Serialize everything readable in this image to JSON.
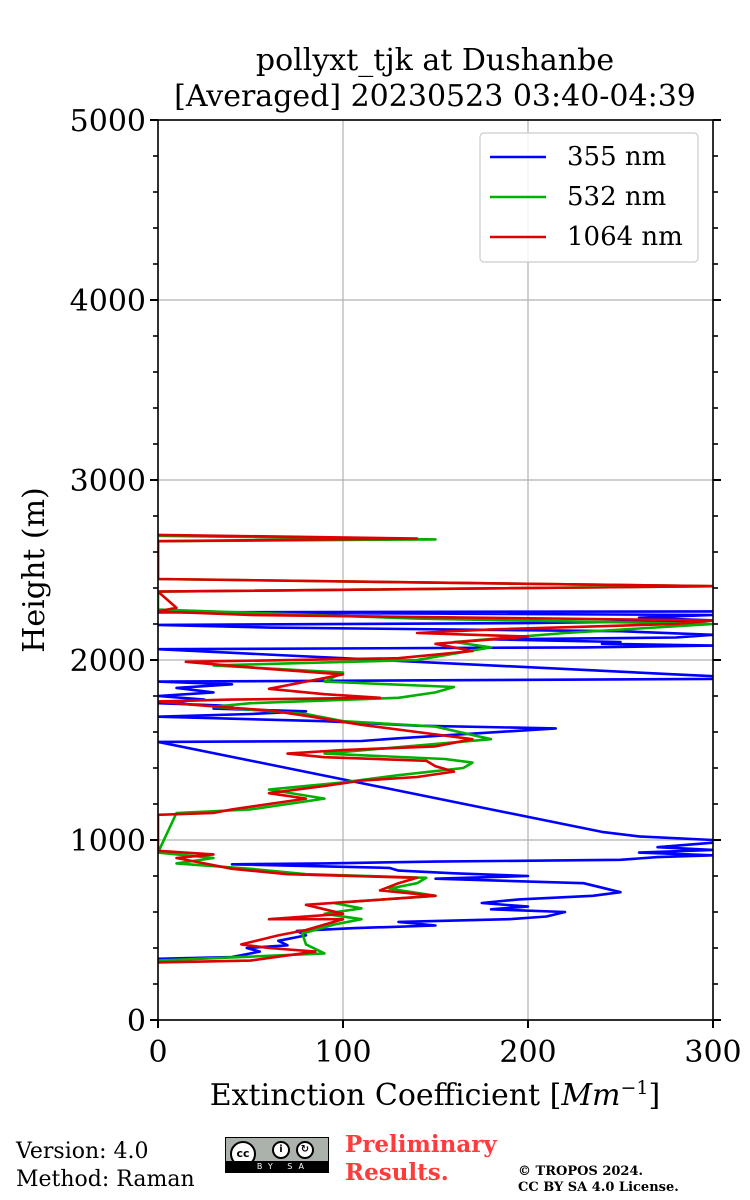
{
  "chart_data": {
    "type": "line",
    "title_line1": "pollyxt_tjk at Dushanbe",
    "title_line2": "[Averaged] 20230523 03:40-04:39",
    "xlabel": "Extinction Coefficient [",
    "xlabel_unit": "Mm",
    "xlabel_exp": "−1",
    "xlabel_close": "]",
    "ylabel": "Height (m)",
    "xlim": [
      0,
      300
    ],
    "ylim": [
      0,
      5000
    ],
    "xticks": [
      0,
      100,
      200,
      300
    ],
    "yticks": [
      0,
      1000,
      2000,
      3000,
      4000,
      5000
    ],
    "grid": true,
    "legend_position": "top-right",
    "series": [
      {
        "name": "355 nm",
        "color": "#0000ff",
        "points": [
          [
            0,
            340
          ],
          [
            40,
            350
          ],
          [
            55,
            380
          ],
          [
            48,
            400
          ],
          [
            70,
            415
          ],
          [
            65,
            440
          ],
          [
            80,
            470
          ],
          [
            75,
            495
          ],
          [
            105,
            510
          ],
          [
            150,
            525
          ],
          [
            130,
            545
          ],
          [
            190,
            560
          ],
          [
            210,
            575
          ],
          [
            220,
            600
          ],
          [
            180,
            615
          ],
          [
            200,
            630
          ],
          [
            175,
            650
          ],
          [
            195,
            670
          ],
          [
            235,
            690
          ],
          [
            250,
            710
          ],
          [
            240,
            735
          ],
          [
            230,
            760
          ],
          [
            150,
            785
          ],
          [
            200,
            800
          ],
          [
            160,
            815
          ],
          [
            130,
            830
          ],
          [
            125,
            845
          ],
          [
            40,
            865
          ],
          [
            90,
            870
          ],
          [
            150,
            880
          ],
          [
            250,
            890
          ],
          [
            270,
            905
          ],
          [
            300,
            915
          ],
          [
            260,
            930
          ],
          [
            300,
            945
          ],
          [
            270,
            960
          ],
          [
            300,
            985
          ],
          [
            300,
            1000
          ],
          [
            260,
            1020
          ],
          [
            240,
            1045
          ],
          [
            0,
            1545
          ],
          [
            110,
            1550
          ],
          [
            130,
            1565
          ],
          [
            215,
            1620
          ],
          [
            140,
            1635
          ],
          [
            90,
            1660
          ],
          [
            0,
            1685
          ],
          [
            50,
            1700
          ],
          [
            80,
            1715
          ],
          [
            30,
            1730
          ],
          [
            40,
            1745
          ],
          [
            0,
            1760
          ],
          [
            25,
            1780
          ],
          [
            0,
            1800
          ],
          [
            30,
            1820
          ],
          [
            10,
            1845
          ],
          [
            40,
            1865
          ],
          [
            0,
            1880
          ],
          [
            160,
            1888
          ],
          [
            300,
            1895
          ],
          [
            300,
            1910
          ],
          [
            280,
            1920
          ],
          [
            0,
            2060
          ],
          [
            230,
            2070
          ],
          [
            300,
            2080
          ],
          [
            240,
            2090
          ],
          [
            250,
            2100
          ],
          [
            180,
            2115
          ],
          [
            280,
            2125
          ],
          [
            300,
            2140
          ],
          [
            250,
            2160
          ],
          [
            60,
            2180
          ],
          [
            0,
            2195
          ],
          [
            200,
            2205
          ],
          [
            300,
            2220
          ],
          [
            260,
            2235
          ],
          [
            300,
            2250
          ],
          [
            0,
            2265
          ],
          [
            300,
            2270
          ]
        ]
      },
      {
        "name": "532 nm",
        "color": "#00b000",
        "points": [
          [
            0,
            330
          ],
          [
            90,
            370
          ],
          [
            80,
            420
          ],
          [
            78,
            480
          ],
          [
            95,
            530
          ],
          [
            110,
            560
          ],
          [
            90,
            590
          ],
          [
            110,
            620
          ],
          [
            95,
            650
          ],
          [
            150,
            690
          ],
          [
            125,
            730
          ],
          [
            140,
            760
          ],
          [
            145,
            790
          ],
          [
            80,
            810
          ],
          [
            50,
            840
          ],
          [
            10,
            870
          ],
          [
            30,
            900
          ],
          [
            0,
            930
          ],
          [
            10,
            1150
          ],
          [
            50,
            1170
          ],
          [
            90,
            1230
          ],
          [
            60,
            1280
          ],
          [
            100,
            1320
          ],
          [
            130,
            1360
          ],
          [
            165,
            1400
          ],
          [
            170,
            1430
          ],
          [
            155,
            1450
          ],
          [
            90,
            1480
          ],
          [
            180,
            1560
          ],
          [
            150,
            1630
          ],
          [
            100,
            1660
          ],
          [
            80,
            1700
          ],
          [
            30,
            1740
          ],
          [
            50,
            1760
          ],
          [
            130,
            1790
          ],
          [
            150,
            1820
          ],
          [
            160,
            1850
          ],
          [
            90,
            1880
          ],
          [
            100,
            1930
          ],
          [
            30,
            1970
          ],
          [
            140,
            2000
          ],
          [
            180,
            2070
          ],
          [
            160,
            2100
          ],
          [
            220,
            2150
          ],
          [
            300,
            2200
          ],
          [
            140,
            2230
          ],
          [
            0,
            2280
          ],
          [
            0,
            2380
          ],
          [
            300,
            2410
          ],
          [
            0,
            2450
          ],
          [
            0,
            2660
          ],
          [
            150,
            2670
          ],
          [
            0,
            2690
          ]
        ]
      },
      {
        "name": "1064 nm",
        "color": "#dd0000",
        "points": [
          [
            0,
            320
          ],
          [
            50,
            330
          ],
          [
            85,
            380
          ],
          [
            60,
            400
          ],
          [
            45,
            420
          ],
          [
            65,
            470
          ],
          [
            80,
            500
          ],
          [
            100,
            560
          ],
          [
            60,
            560
          ],
          [
            100,
            590
          ],
          [
            80,
            640
          ],
          [
            150,
            690
          ],
          [
            120,
            720
          ],
          [
            130,
            760
          ],
          [
            140,
            790
          ],
          [
            70,
            810
          ],
          [
            40,
            840
          ],
          [
            25,
            870
          ],
          [
            10,
            900
          ],
          [
            30,
            920
          ],
          [
            0,
            940
          ],
          [
            0,
            1140
          ],
          [
            30,
            1150
          ],
          [
            40,
            1170
          ],
          [
            60,
            1200
          ],
          [
            80,
            1230
          ],
          [
            60,
            1260
          ],
          [
            90,
            1300
          ],
          [
            110,
            1330
          ],
          [
            140,
            1350
          ],
          [
            160,
            1380
          ],
          [
            150,
            1410
          ],
          [
            145,
            1440
          ],
          [
            90,
            1460
          ],
          [
            70,
            1480
          ],
          [
            100,
            1500
          ],
          [
            150,
            1520
          ],
          [
            170,
            1560
          ],
          [
            140,
            1600
          ],
          [
            110,
            1640
          ],
          [
            80,
            1690
          ],
          [
            60,
            1720
          ],
          [
            20,
            1750
          ],
          [
            0,
            1770
          ],
          [
            40,
            1780
          ],
          [
            120,
            1790
          ],
          [
            90,
            1810
          ],
          [
            60,
            1840
          ],
          [
            80,
            1880
          ],
          [
            100,
            1920
          ],
          [
            60,
            1950
          ],
          [
            15,
            1990
          ],
          [
            130,
            2010
          ],
          [
            170,
            2050
          ],
          [
            150,
            2090
          ],
          [
            200,
            2130
          ],
          [
            140,
            2150
          ],
          [
            180,
            2170
          ],
          [
            280,
            2200
          ],
          [
            300,
            2220
          ],
          [
            50,
            2250
          ],
          [
            0,
            2270
          ],
          [
            10,
            2290
          ],
          [
            0,
            2380
          ],
          [
            300,
            2410
          ],
          [
            0,
            2450
          ],
          [
            0,
            2660
          ],
          [
            140,
            2675
          ],
          [
            0,
            2695
          ]
        ]
      }
    ]
  },
  "footer": {
    "version": "Version: 4.0",
    "method": "Method: Raman",
    "license_badge": "BY SA",
    "license_cc": "cc",
    "preliminary_line1": "Preliminary",
    "preliminary_line2": "Results.",
    "copyright_line1": "© TROPOS 2024.",
    "copyright_line2": "CC BY SA 4.0 License."
  }
}
